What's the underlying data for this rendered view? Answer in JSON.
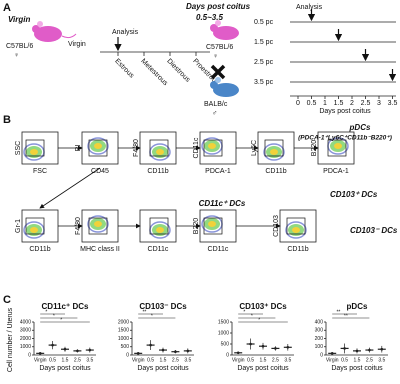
{
  "panel_a": {
    "label": "A",
    "virgin": {
      "title": "Virgin",
      "strain": "C57BL/6",
      "sex": "♀",
      "state": "Virgin",
      "analysis": "Analysis",
      "stages": [
        "Estrous",
        "Metestrous",
        "Diestrous",
        "Proestrous"
      ]
    },
    "mating": {
      "title": "Days post coitus",
      "range": "0.5~3.5",
      "female_strain": "C57BL/6",
      "female_sex": "♀",
      "male_strain": "BALB/c",
      "male_sex": "♂",
      "analysis": "Analysis",
      "groups": [
        "0.5 pc",
        "1.5 pc",
        "2.5 pc",
        "3.5 pc"
      ],
      "ticks": [
        "0",
        "0.5",
        "1",
        "1.5",
        "2",
        "2.5",
        "3",
        "3.5"
      ],
      "axis_label": "Days post coitus"
    }
  },
  "panel_b": {
    "label": "B",
    "row1": [
      {
        "y": "SSC",
        "x": "FSC"
      },
      {
        "y": "PI",
        "x": "CD45"
      },
      {
        "y": "F4/80",
        "x": "CD11b"
      },
      {
        "y": "CD11c",
        "x": "PDCA-1"
      },
      {
        "y": "Ly6C",
        "x": "CD11b"
      },
      {
        "y": "B220",
        "x": "PDCA-1"
      }
    ],
    "row2": [
      {
        "y": "Gr-1",
        "x": "CD11b"
      },
      {
        "y": "F4/80",
        "x": "MHC class II"
      },
      {
        "x": "CD11c"
      },
      {
        "y": "B220",
        "x": "CD11c"
      },
      {
        "y": "CD103",
        "x": "CD11b"
      }
    ],
    "pdc_title": "pDCs",
    "pdc_definition": "(PDCA-1⁺Ly6C⁺CD11b⁻B220⁺)",
    "cd11c_title": "CD11c⁺ DCs",
    "cd103_pos_title": "CD103⁺ DCs",
    "cd103_neg_title": "CD103⁻ DCs"
  },
  "panel_c": {
    "label": "C"
  },
  "chart_data": [
    {
      "type": "dot",
      "title": "CD11c⁺ DCs",
      "ylabel": "Cell number / Uterus",
      "xlabel": "Days post coitus",
      "categories": [
        "Virgin",
        "0.5",
        "1.5",
        "2.5",
        "3.5"
      ],
      "values": [
        200,
        1200,
        700,
        500,
        600
      ],
      "errors": [
        100,
        500,
        300,
        200,
        300
      ],
      "ylim": [
        0,
        4000
      ],
      "yticks": [
        0,
        1000,
        2000,
        3000,
        4000
      ],
      "annotations": [
        "*",
        "*",
        "*"
      ],
      "color": "#222222"
    },
    {
      "type": "dot",
      "title": "CD103⁻ DCs",
      "xlabel": "Days post coitus",
      "categories": [
        "Virgin",
        "0.5",
        "1.5",
        "2.5",
        "3.5"
      ],
      "values": [
        100,
        600,
        300,
        200,
        250
      ],
      "errors": [
        50,
        300,
        150,
        100,
        150
      ],
      "ylim": [
        0,
        2000
      ],
      "yticks": [
        0,
        500,
        1000,
        1500,
        2000
      ],
      "annotations": [
        "**",
        "*"
      ],
      "color": "#222222"
    },
    {
      "type": "dot",
      "title": "CD103⁺ DCs",
      "xlabel": "Days post coitus",
      "categories": [
        "Virgin",
        "0.5",
        "1.5",
        "2.5",
        "3.5"
      ],
      "values": [
        100,
        500,
        400,
        300,
        350
      ],
      "errors": [
        50,
        250,
        150,
        100,
        150
      ],
      "ylim": [
        0,
        1500
      ],
      "yticks": [
        0,
        500,
        1000,
        1500
      ],
      "annotations": [
        "*",
        "*",
        "*"
      ],
      "color": "#222222"
    },
    {
      "type": "dot",
      "title": "pDCs",
      "xlabel": "Days post coitus",
      "categories": [
        "Virgin",
        "0.5",
        "1.5",
        "2.5",
        "3.5"
      ],
      "values": [
        20,
        80,
        50,
        60,
        70
      ],
      "errors": [
        10,
        60,
        30,
        30,
        40
      ],
      "ylim": [
        0,
        400
      ],
      "yticks": [
        0,
        100,
        200,
        300,
        400
      ],
      "annotations": [
        "**",
        "**"
      ],
      "color": "#222222"
    }
  ]
}
